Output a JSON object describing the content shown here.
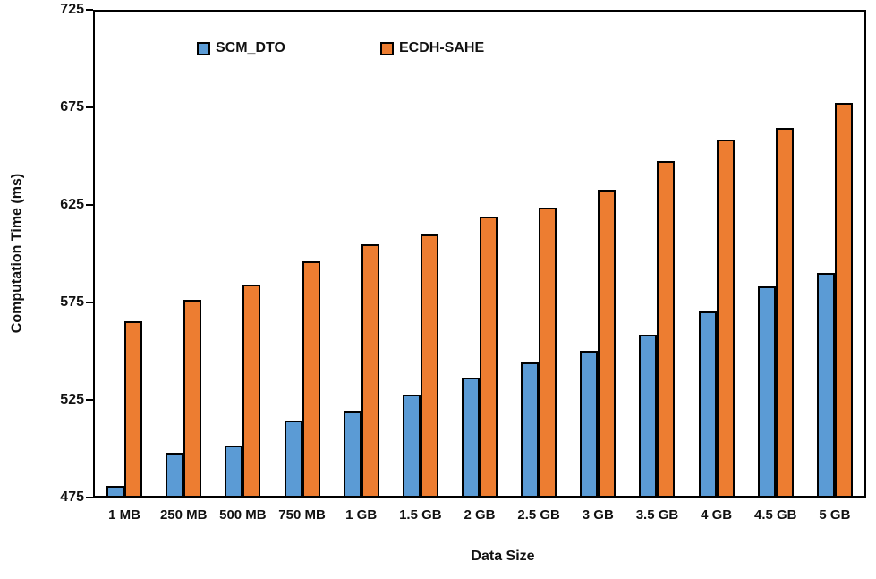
{
  "chart_data": {
    "type": "bar",
    "title": "",
    "xlabel": "Data Size",
    "ylabel": "Computation Time (ms)",
    "ylim": [
      475,
      725
    ],
    "yticks": [
      475,
      525,
      575,
      625,
      675,
      725
    ],
    "grid": false,
    "legend_position": "top-inside",
    "bar_border_color": "#000000",
    "categories": [
      "1 MB",
      "250 MB",
      "500 MB",
      "750 MB",
      "1 GB",
      "1.5 GB",
      "2 GB",
      "2.5 GB",
      "3 GB",
      "3.5 GB",
      "4 GB",
      "4.5 GB",
      "5 GB"
    ],
    "series": [
      {
        "name": "SCM_DTO",
        "color": "#5B9BD5",
        "values": [
          480,
          497,
          501,
          514,
          519,
          527,
          536,
          544,
          550,
          558,
          570,
          583,
          590
        ]
      },
      {
        "name": "ECDH-SAHE",
        "color": "#ED7D31",
        "values": [
          565,
          576,
          584,
          596,
          605,
          610,
          619,
          624,
          633,
          648,
          659,
          665,
          678
        ]
      }
    ]
  }
}
